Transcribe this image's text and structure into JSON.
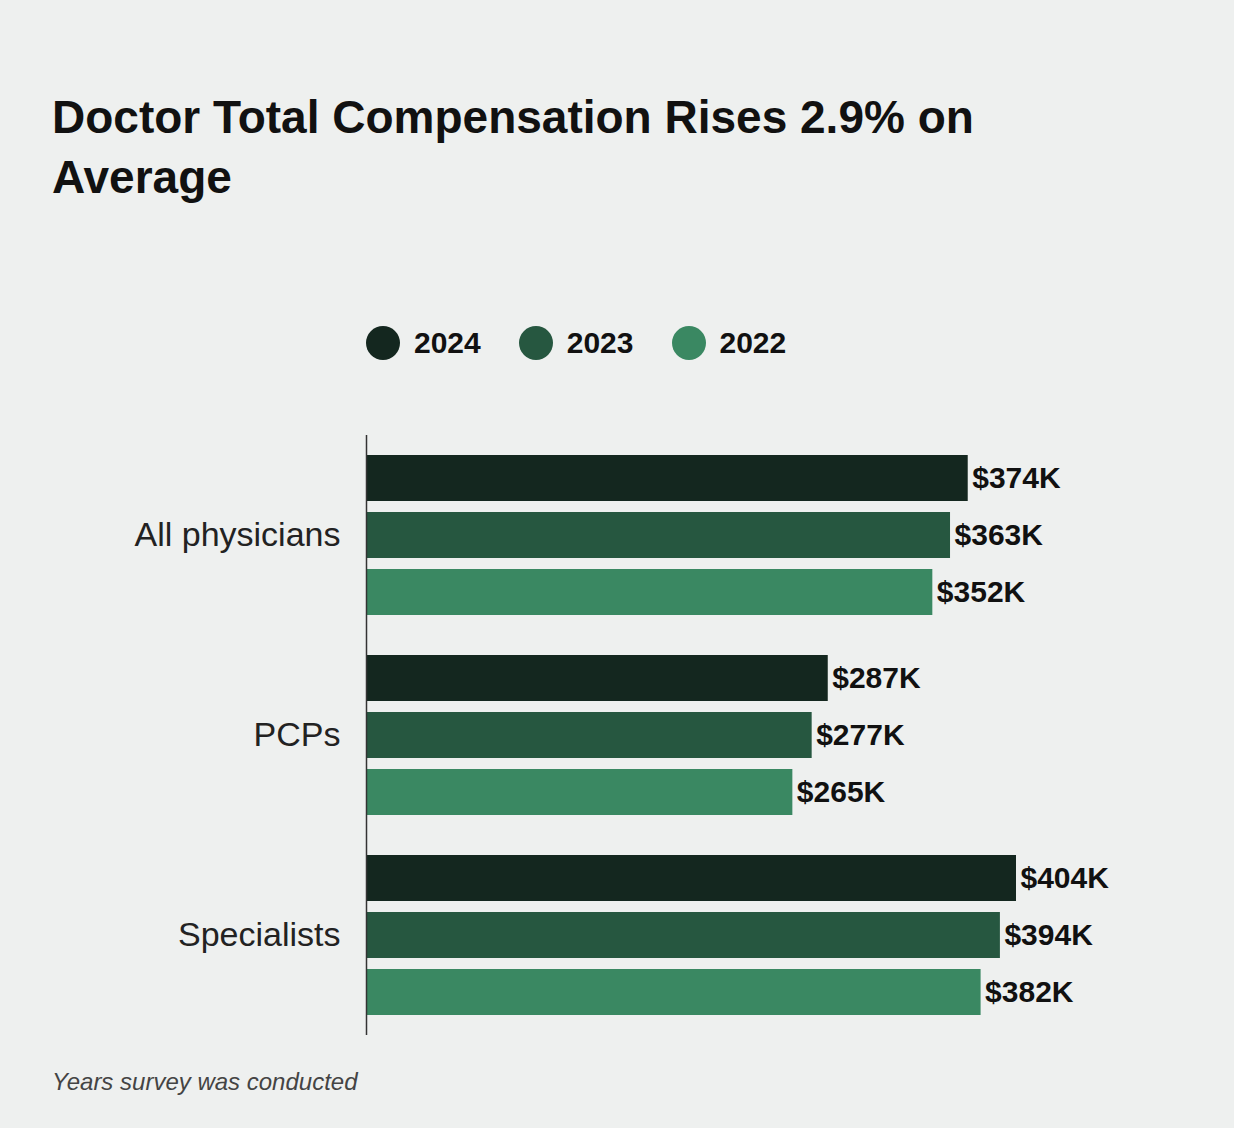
{
  "chart_data": {
    "type": "bar",
    "title": "Doctor Total Compensation Rises 2.9% on Average",
    "caption": "Years survey was conducted",
    "orientation": "horizontal",
    "categories": [
      "All physicians",
      "PCPs",
      "Specialists"
    ],
    "series": [
      {
        "name": "2024",
        "color": "#14271f",
        "values": [
          374,
          287,
          404
        ],
        "value_labels": [
          "$374K",
          "$287K",
          "$404K"
        ]
      },
      {
        "name": "2023",
        "color": "#265740",
        "values": [
          363,
          277,
          394
        ],
        "value_labels": [
          "$363K",
          "$277K",
          "$394K"
        ]
      },
      {
        "name": "2022",
        "color": "#3a8862",
        "values": [
          352,
          265,
          382
        ],
        "value_labels": [
          "$352K",
          "$265K",
          "$382K"
        ]
      }
    ],
    "xlim": [
      0,
      450
    ],
    "xticks": [],
    "grid": false,
    "legend": "top",
    "data_labels": true,
    "tick_labels": "y"
  }
}
